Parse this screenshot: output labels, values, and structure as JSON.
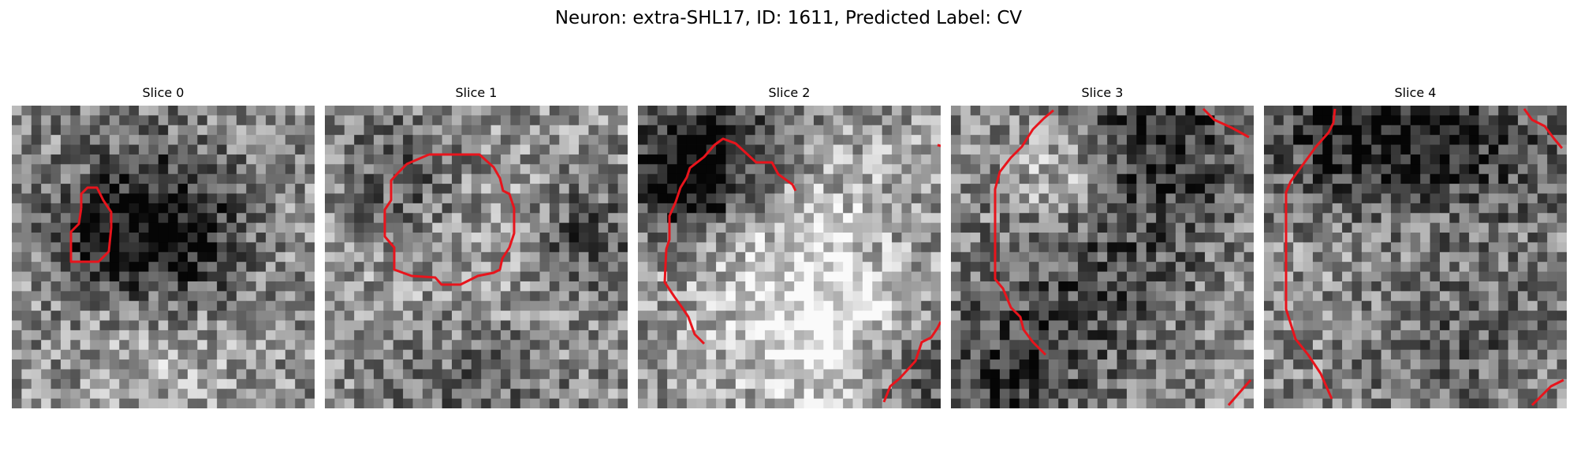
{
  "figure": {
    "title": "Neuron: extra-SHL17, ID: 1611, Predicted Label: CV"
  },
  "colors": {
    "contour": "#e8141c",
    "background": "#ffffff"
  },
  "panels": [
    {
      "title": "Slice 0"
    },
    {
      "title": "Slice 1"
    },
    {
      "title": "Slice 2"
    },
    {
      "title": "Slice 3"
    },
    {
      "title": "Slice 4"
    }
  ]
}
